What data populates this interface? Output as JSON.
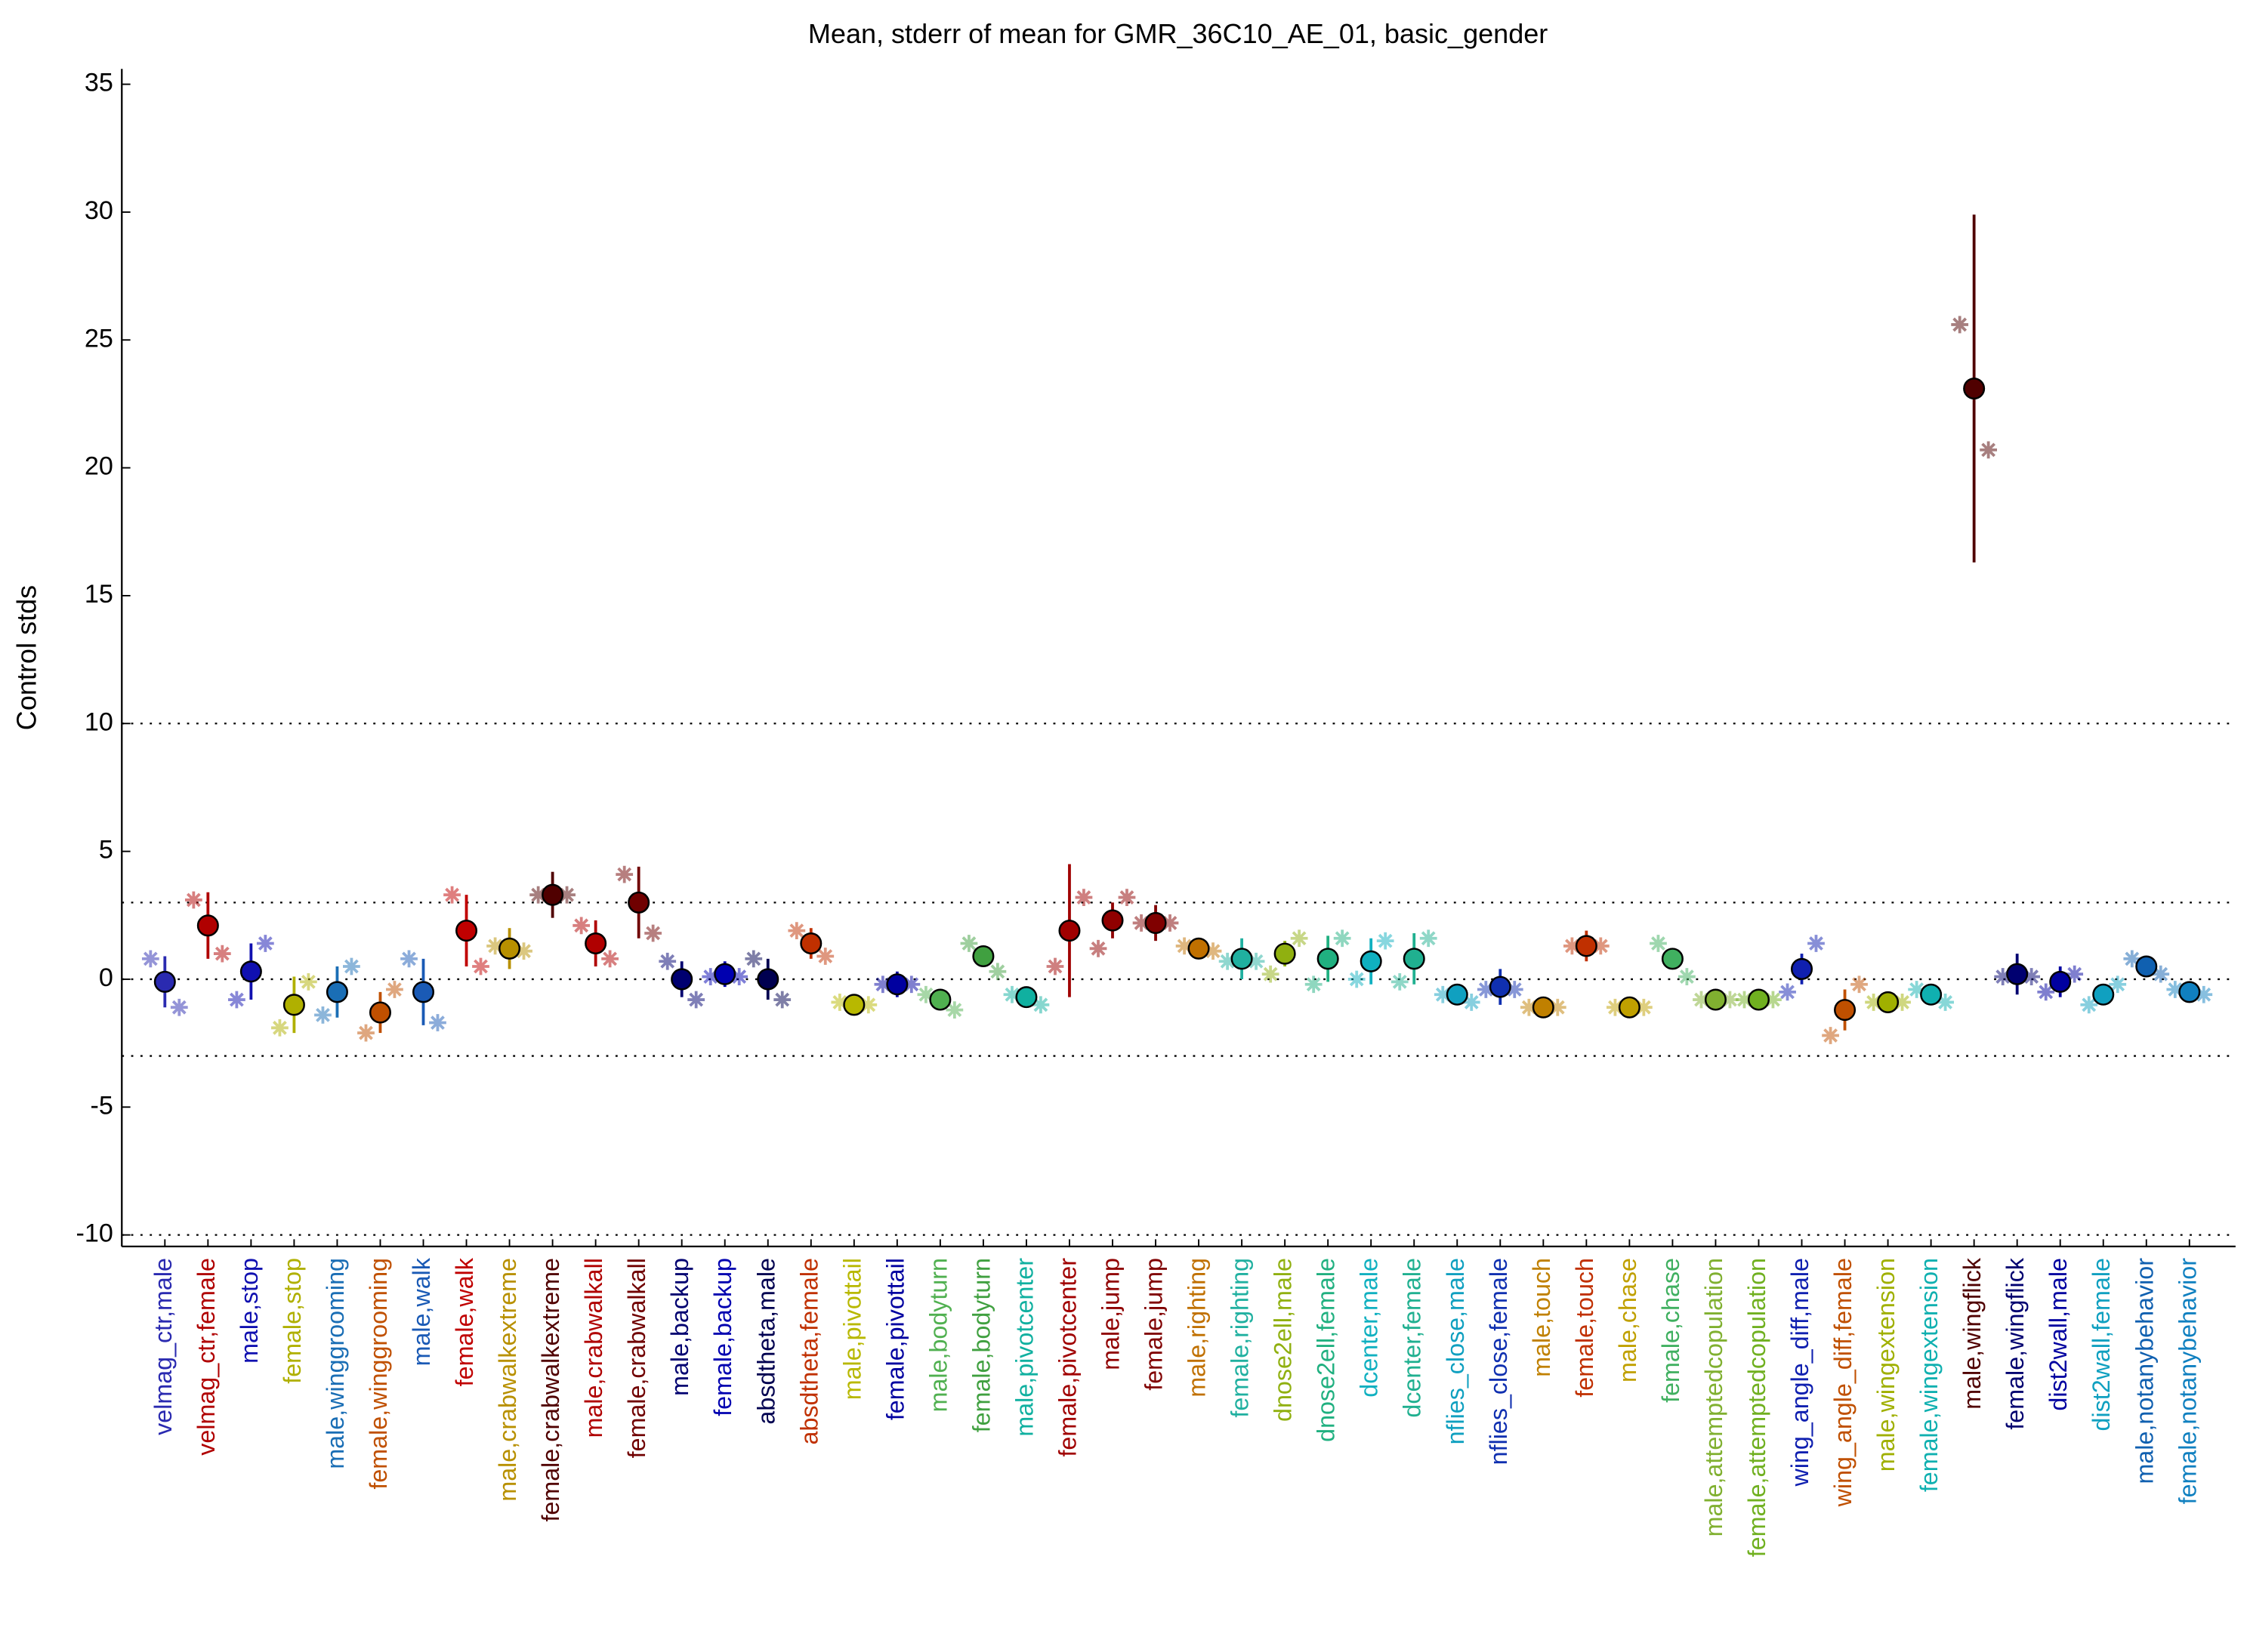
{
  "chart_data": {
    "type": "errorbar",
    "title": "Mean, stderr of mean for GMR_36C10_AE_01, basic_gender",
    "ylabel": "Control stds",
    "ylim": [
      -10.45,
      35.6
    ],
    "yticks": [
      -10,
      -5,
      0,
      5,
      10,
      15,
      20,
      25,
      30,
      35
    ],
    "reference_lines": [
      -10,
      -3,
      0,
      3,
      10
    ],
    "categories": [
      "velmag_ctr,male",
      "velmag_ctr,female",
      "male,stop",
      "female,stop",
      "male,winggrooming",
      "female,winggrooming",
      "male,walk",
      "female,walk",
      "male,crabwalkextreme",
      "female,crabwalkextreme",
      "male,crabwalkall",
      "female,crabwalkall",
      "male,backup",
      "female,backup",
      "absdtheta,male",
      "absdtheta,female",
      "male,pivottail",
      "female,pivottail",
      "male,bodyturn",
      "female,bodyturn",
      "male,pivotcenter",
      "female,pivotcenter",
      "male,jump",
      "female,jump",
      "male,righting",
      "female,righting",
      "dnose2ell,male",
      "dnose2ell,female",
      "dcenter,male",
      "dcenter,female",
      "nflies_close,male",
      "nflies_close,female",
      "male,touch",
      "female,touch",
      "male,chase",
      "female,chase",
      "male,attemptedcopulation",
      "female,attemptedcopulation",
      "wing_angle_diff,male",
      "wing_angle_diff,female",
      "male,wingextension",
      "female,wingextension",
      "male,wingflick",
      "female,wingflick",
      "dist2wall,male",
      "dist2wall,female",
      "male,notanybehavior",
      "female,notanybehavior"
    ],
    "values": [
      -0.1,
      2.1,
      0.3,
      -1.0,
      -0.5,
      -1.3,
      -0.5,
      1.9,
      1.2,
      3.3,
      1.4,
      3.0,
      0.0,
      0.2,
      0.0,
      1.4,
      -1.0,
      -0.2,
      -0.8,
      0.9,
      -0.7,
      1.9,
      2.3,
      2.2,
      1.2,
      0.8,
      1.0,
      0.8,
      0.7,
      0.8,
      -0.6,
      -0.3,
      -1.1,
      1.3,
      -1.1,
      0.8,
      -0.8,
      -0.8,
      0.4,
      -1.2,
      -0.9,
      -0.6,
      23.1,
      0.2,
      -0.1,
      -0.6,
      0.5,
      -0.5
    ],
    "errors": [
      1.0,
      1.3,
      1.1,
      1.1,
      1.0,
      0.8,
      1.3,
      1.4,
      0.8,
      0.9,
      0.9,
      1.4,
      0.7,
      0.5,
      0.8,
      0.6,
      0.3,
      0.5,
      0.3,
      0.3,
      0.4,
      2.6,
      0.7,
      0.7,
      0.4,
      0.8,
      0.5,
      0.9,
      0.9,
      1.0,
      0.3,
      0.7,
      0.2,
      0.6,
      0.2,
      0.3,
      0.2,
      0.2,
      0.6,
      0.8,
      0.2,
      0.3,
      6.8,
      0.8,
      0.6,
      0.3,
      0.3,
      0.4
    ],
    "stars_left": [
      0.8,
      3.1,
      -0.8,
      -1.9,
      -1.4,
      -2.1,
      0.8,
      3.3,
      1.3,
      3.3,
      2.1,
      4.1,
      0.7,
      0.1,
      0.8,
      1.9,
      -0.9,
      -0.2,
      -0.6,
      1.4,
      -0.6,
      0.5,
      1.2,
      2.2,
      1.3,
      0.7,
      0.2,
      -0.2,
      0.0,
      -0.1,
      -0.6,
      -0.4,
      -1.1,
      1.3,
      -1.1,
      1.4,
      -0.8,
      -0.8,
      -0.5,
      -2.2,
      -0.9,
      -0.4,
      25.6,
      0.1,
      -0.5,
      -1.0,
      0.8,
      -0.4
    ],
    "stars_right": [
      -1.1,
      1.0,
      1.4,
      -0.1,
      0.5,
      -0.4,
      -1.7,
      0.5,
      1.1,
      3.3,
      0.8,
      1.8,
      -0.8,
      0.1,
      -0.8,
      0.9,
      -1.0,
      -0.2,
      -1.2,
      0.3,
      -1.0,
      3.2,
      3.2,
      2.2,
      1.1,
      0.7,
      1.6,
      1.6,
      1.5,
      1.6,
      -0.9,
      -0.4,
      -1.1,
      1.3,
      -1.1,
      0.1,
      -0.8,
      -0.8,
      1.4,
      -0.2,
      -0.9,
      -0.9,
      20.7,
      0.1,
      0.2,
      -0.2,
      0.2,
      -0.6
    ],
    "colors": [
      "#2a2ab0",
      "#b00000",
      "#1010b0",
      "#b0b000",
      "#1a6eb5",
      "#c05000",
      "#1a5ab5",
      "#c00000",
      "#b89000",
      "#500000",
      "#b00000",
      "#700000",
      "#000070",
      "#0000b0",
      "#000050",
      "#c03000",
      "#b8b800",
      "#0000a0",
      "#50b050",
      "#40a040",
      "#10b0a0",
      "#a00000",
      "#900000",
      "#800000",
      "#c07000",
      "#20b0a0",
      "#90b010",
      "#20b080",
      "#10b0c0",
      "#20b090",
      "#10a0c0",
      "#1030b0",
      "#c08000",
      "#c03000",
      "#c0a000",
      "#40b060",
      "#80b030",
      "#70b020",
      "#1020b0",
      "#c05000",
      "#a0b000",
      "#10b0b0",
      "#500000",
      "#000070",
      "#0000a0",
      "#10a0c0",
      "#1060b0",
      "#1080c0"
    ]
  }
}
